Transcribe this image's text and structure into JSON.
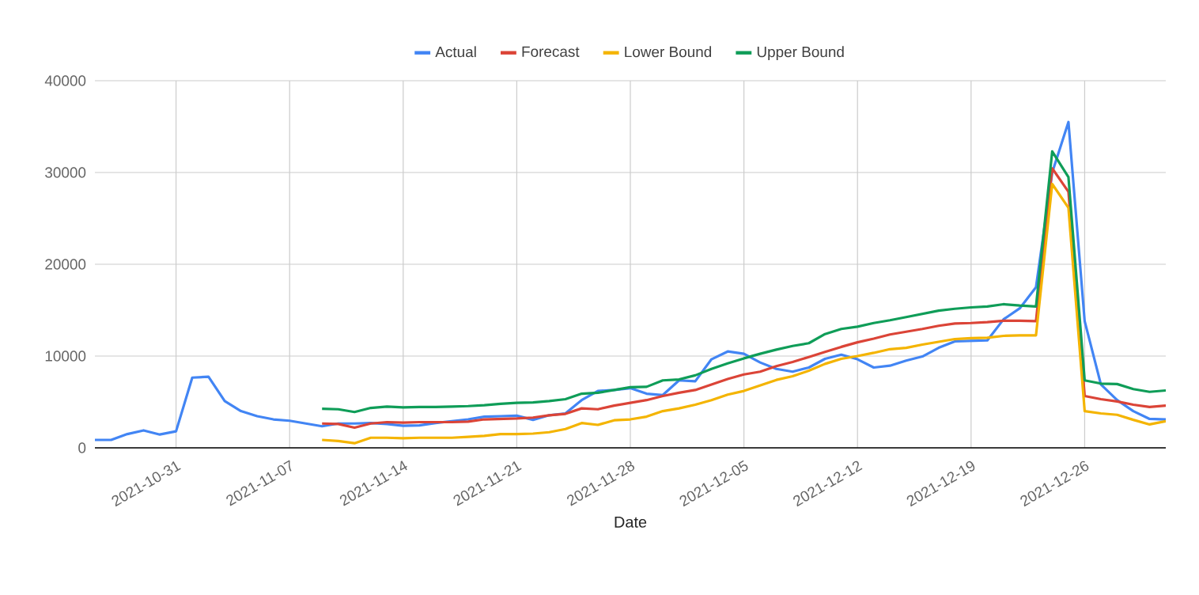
{
  "chart_data": {
    "type": "line",
    "xlabel": "Date",
    "x": [
      "2021-10-26",
      "2021-10-27",
      "2021-10-28",
      "2021-10-29",
      "2021-10-30",
      "2021-10-31",
      "2021-11-01",
      "2021-11-02",
      "2021-11-03",
      "2021-11-04",
      "2021-11-05",
      "2021-11-06",
      "2021-11-07",
      "2021-11-08",
      "2021-11-09",
      "2021-11-10",
      "2021-11-11",
      "2021-11-12",
      "2021-11-13",
      "2021-11-14",
      "2021-11-15",
      "2021-11-16",
      "2021-11-17",
      "2021-11-18",
      "2021-11-19",
      "2021-11-20",
      "2021-11-21",
      "2021-11-22",
      "2021-11-23",
      "2021-11-24",
      "2021-11-25",
      "2021-11-26",
      "2021-11-27",
      "2021-11-28",
      "2021-11-29",
      "2021-11-30",
      "2021-12-01",
      "2021-12-02",
      "2021-12-03",
      "2021-12-04",
      "2021-12-05",
      "2021-12-06",
      "2021-12-07",
      "2021-12-08",
      "2021-12-09",
      "2021-12-10",
      "2021-12-11",
      "2021-12-12",
      "2021-12-13",
      "2021-12-14",
      "2021-12-15",
      "2021-12-16",
      "2021-12-17",
      "2021-12-18",
      "2021-12-19",
      "2021-12-20",
      "2021-12-21",
      "2021-12-22",
      "2021-12-23",
      "2021-12-24",
      "2021-12-25",
      "2021-12-26",
      "2021-12-27",
      "2021-12-28",
      "2021-12-29",
      "2021-12-30",
      "2021-12-31"
    ],
    "series": [
      {
        "name": "Actual",
        "color": "#4285f4",
        "values": [
          860,
          860,
          1500,
          1900,
          1450,
          1800,
          7650,
          7750,
          5100,
          4000,
          3450,
          3100,
          2950,
          2650,
          2350,
          2650,
          2650,
          2700,
          2600,
          2400,
          2450,
          2700,
          2900,
          3100,
          3400,
          3450,
          3500,
          3050,
          3550,
          3750,
          5200,
          6200,
          6300,
          6500,
          5900,
          5750,
          7350,
          7250,
          9650,
          10500,
          10250,
          9300,
          8600,
          8300,
          8750,
          9700,
          10150,
          9650,
          8750,
          8950,
          9500,
          9950,
          10900,
          11600,
          11650,
          11700,
          14000,
          15200,
          17500,
          30000,
          35500,
          13800,
          6900,
          5200,
          4000,
          3150,
          3100
        ]
      },
      {
        "name": "Forecast",
        "color": "#db4437",
        "x": [
          "2021-11-09",
          "2021-11-10",
          "2021-11-11",
          "2021-11-12",
          "2021-11-13",
          "2021-11-14",
          "2021-11-15",
          "2021-11-16",
          "2021-11-17",
          "2021-11-18",
          "2021-11-19",
          "2021-11-20",
          "2021-11-21",
          "2021-11-22",
          "2021-11-23",
          "2021-11-24",
          "2021-11-25",
          "2021-11-26",
          "2021-11-27",
          "2021-11-28",
          "2021-11-29",
          "2021-11-30",
          "2021-12-01",
          "2021-12-02",
          "2021-12-03",
          "2021-12-04",
          "2021-12-05",
          "2021-12-06",
          "2021-12-07",
          "2021-12-08",
          "2021-12-09",
          "2021-12-10",
          "2021-12-11",
          "2021-12-12",
          "2021-12-13",
          "2021-12-14",
          "2021-12-15",
          "2021-12-16",
          "2021-12-17",
          "2021-12-18",
          "2021-12-19",
          "2021-12-20",
          "2021-12-21",
          "2021-12-22",
          "2021-12-23",
          "2021-12-24",
          "2021-12-25",
          "2021-12-26",
          "2021-12-27",
          "2021-12-28",
          "2021-12-29",
          "2021-12-30",
          "2021-12-31"
        ],
        "values": [
          2650,
          2600,
          2200,
          2650,
          2800,
          2750,
          2800,
          2800,
          2800,
          2850,
          3100,
          3150,
          3200,
          3300,
          3550,
          3700,
          4300,
          4200,
          4600,
          4900,
          5200,
          5650,
          6000,
          6300,
          6900,
          7500,
          8000,
          8300,
          8900,
          9350,
          9900,
          10450,
          11000,
          11500,
          11900,
          12350,
          12650,
          12950,
          13300,
          13550,
          13600,
          13700,
          13850,
          13850,
          13800,
          30450,
          27900,
          5650,
          5300,
          5050,
          4700,
          4450,
          4600
        ]
      },
      {
        "name": "Lower Bound",
        "color": "#f4b400",
        "x": [
          "2021-11-09",
          "2021-11-10",
          "2021-11-11",
          "2021-11-12",
          "2021-11-13",
          "2021-11-14",
          "2021-11-15",
          "2021-11-16",
          "2021-11-17",
          "2021-11-18",
          "2021-11-19",
          "2021-11-20",
          "2021-11-21",
          "2021-11-22",
          "2021-11-23",
          "2021-11-24",
          "2021-11-25",
          "2021-11-26",
          "2021-11-27",
          "2021-11-28",
          "2021-11-29",
          "2021-11-30",
          "2021-12-01",
          "2021-12-02",
          "2021-12-03",
          "2021-12-04",
          "2021-12-05",
          "2021-12-06",
          "2021-12-07",
          "2021-12-08",
          "2021-12-09",
          "2021-12-10",
          "2021-12-11",
          "2021-12-12",
          "2021-12-13",
          "2021-12-14",
          "2021-12-15",
          "2021-12-16",
          "2021-12-17",
          "2021-12-18",
          "2021-12-19",
          "2021-12-20",
          "2021-12-21",
          "2021-12-22",
          "2021-12-23",
          "2021-12-24",
          "2021-12-25",
          "2021-12-26",
          "2021-12-27",
          "2021-12-28",
          "2021-12-29",
          "2021-12-30",
          "2021-12-31"
        ],
        "values": [
          860,
          750,
          500,
          1100,
          1100,
          1050,
          1100,
          1100,
          1100,
          1200,
          1300,
          1500,
          1500,
          1550,
          1700,
          2050,
          2700,
          2500,
          3000,
          3100,
          3400,
          4000,
          4300,
          4700,
          5200,
          5800,
          6200,
          6800,
          7400,
          7800,
          8400,
          9150,
          9700,
          10000,
          10350,
          10750,
          10900,
          11250,
          11550,
          11850,
          11950,
          12000,
          12200,
          12250,
          12250,
          28750,
          26150,
          4000,
          3750,
          3600,
          3050,
          2550,
          2900
        ]
      },
      {
        "name": "Upper Bound",
        "color": "#0f9d58",
        "x": [
          "2021-11-09",
          "2021-11-10",
          "2021-11-11",
          "2021-11-12",
          "2021-11-13",
          "2021-11-14",
          "2021-11-15",
          "2021-11-16",
          "2021-11-17",
          "2021-11-18",
          "2021-11-19",
          "2021-11-20",
          "2021-11-21",
          "2021-11-22",
          "2021-11-23",
          "2021-11-24",
          "2021-11-25",
          "2021-11-26",
          "2021-11-27",
          "2021-11-28",
          "2021-11-29",
          "2021-11-30",
          "2021-12-01",
          "2021-12-02",
          "2021-12-03",
          "2021-12-04",
          "2021-12-05",
          "2021-12-06",
          "2021-12-07",
          "2021-12-08",
          "2021-12-09",
          "2021-12-10",
          "2021-12-11",
          "2021-12-12",
          "2021-12-13",
          "2021-12-14",
          "2021-12-15",
          "2021-12-16",
          "2021-12-17",
          "2021-12-18",
          "2021-12-19",
          "2021-12-20",
          "2021-12-21",
          "2021-12-22",
          "2021-12-23",
          "2021-12-24",
          "2021-12-25",
          "2021-12-26",
          "2021-12-27",
          "2021-12-28",
          "2021-12-29",
          "2021-12-30",
          "2021-12-31"
        ],
        "values": [
          4250,
          4200,
          3900,
          4350,
          4500,
          4400,
          4450,
          4450,
          4500,
          4550,
          4650,
          4800,
          4900,
          4950,
          5100,
          5300,
          5900,
          6000,
          6300,
          6600,
          6650,
          7350,
          7450,
          7900,
          8600,
          9200,
          9750,
          10250,
          10700,
          11100,
          11400,
          12400,
          12950,
          13200,
          13600,
          13900,
          14250,
          14600,
          14950,
          15150,
          15300,
          15400,
          15650,
          15500,
          15400,
          32300,
          29500,
          7350,
          7000,
          6950,
          6400,
          6100,
          6250
        ]
      }
    ],
    "xlim": [
      "2021-10-26",
      "2021-12-31"
    ],
    "ylim": [
      0,
      40000
    ],
    "xticks": [
      "2021-10-31",
      "2021-11-07",
      "2021-11-14",
      "2021-11-21",
      "2021-11-28",
      "2021-12-05",
      "2021-12-12",
      "2021-12-19",
      "2021-12-26"
    ],
    "yticks": [
      0,
      10000,
      20000,
      30000,
      40000
    ],
    "grid": true,
    "legend": "top",
    "marker": "none",
    "line_style": "solid"
  }
}
